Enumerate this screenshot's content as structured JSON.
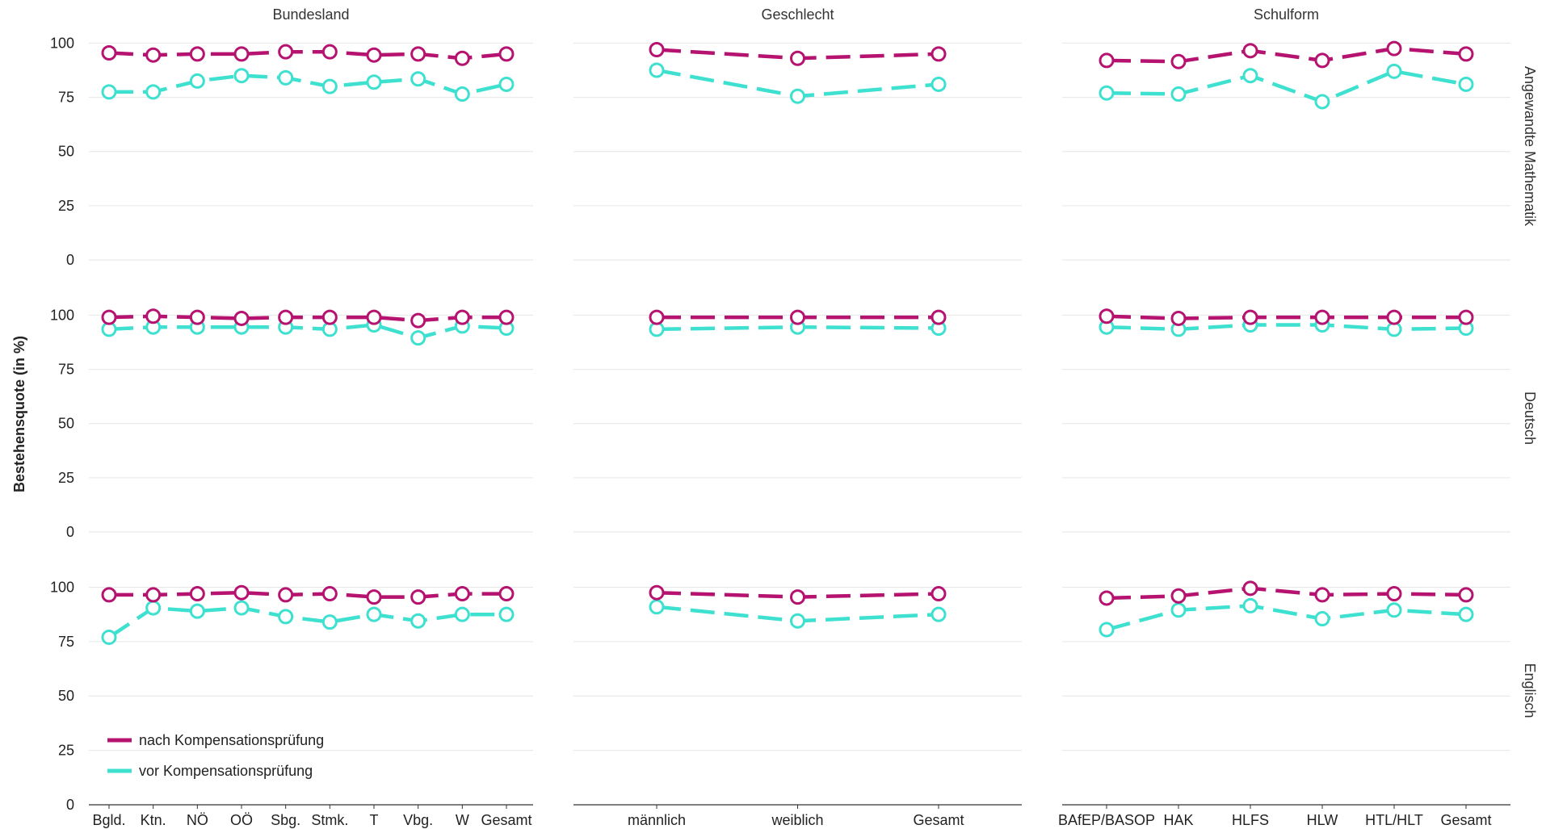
{
  "chart_data": {
    "type": "line",
    "ylabel": "Bestehensquote (in %)",
    "yticks": [
      0,
      25,
      50,
      75,
      100
    ],
    "ylim": [
      0,
      105
    ],
    "grid": true,
    "legend_position": "bottom-left",
    "colors": {
      "nach": "#b5136f",
      "vor": "#3ee0cf"
    },
    "legend": [
      {
        "key": "nach",
        "label": "nach Kompensationsprüfung"
      },
      {
        "key": "vor",
        "label": "vor Kompensationsprüfung"
      }
    ],
    "columns": [
      {
        "title": "Bundesland",
        "categories": [
          "Bgld.",
          "Ktn.",
          "NÖ",
          "OÖ",
          "Sbg.",
          "Stmk.",
          "T",
          "Vbg.",
          "W",
          "Gesamt"
        ]
      },
      {
        "title": "Geschlecht",
        "categories": [
          "männlich",
          "weiblich",
          "Gesamt"
        ]
      },
      {
        "title": "Schulform",
        "categories": [
          "BAfEP/BASOP",
          "HAK",
          "HLFS",
          "HLW",
          "HTL/HLT",
          "Gesamt"
        ]
      }
    ],
    "rows": [
      {
        "label": "Angewandte Mathematik",
        "panels": [
          {
            "nach": [
              95.5,
              94.5,
              95,
              95,
              96,
              96,
              94.5,
              95,
              93,
              95
            ],
            "vor": [
              77.5,
              77.5,
              82.5,
              85,
              84,
              80,
              82,
              83.5,
              76.5,
              81
            ]
          },
          {
            "nach": [
              97,
              93,
              95
            ],
            "vor": [
              87.5,
              75.5,
              81
            ]
          },
          {
            "nach": [
              92,
              91.5,
              96.5,
              92,
              97.5,
              95
            ],
            "vor": [
              77,
              76.5,
              85,
              73,
              87,
              81
            ]
          }
        ]
      },
      {
        "label": "Deutsch",
        "panels": [
          {
            "nach": [
              99,
              99.5,
              99,
              98.5,
              99,
              99,
              99,
              97.5,
              99,
              99
            ],
            "vor": [
              93.5,
              94.5,
              94.5,
              94.5,
              94.5,
              93.5,
              95.5,
              89.5,
              95,
              94
            ]
          },
          {
            "nach": [
              99,
              99,
              99
            ],
            "vor": [
              93.5,
              94.5,
              94
            ]
          },
          {
            "nach": [
              99.5,
              98.5,
              99,
              99,
              99,
              99
            ],
            "vor": [
              94.5,
              93.5,
              95.5,
              95.5,
              93.5,
              94
            ]
          }
        ]
      },
      {
        "label": "Englisch",
        "panels": [
          {
            "nach": [
              96.5,
              96.5,
              97,
              97.5,
              96.5,
              97,
              95.5,
              95.5,
              97,
              97
            ],
            "vor": [
              77,
              90.5,
              89,
              90.5,
              86.5,
              84,
              87.5,
              84.5,
              87.5,
              87.5
            ]
          },
          {
            "nach": [
              97.5,
              95.5,
              97
            ],
            "vor": [
              91,
              84.5,
              87.5
            ]
          },
          {
            "nach": [
              95,
              96,
              99.5,
              96.5,
              97,
              96.5
            ],
            "vor": [
              80.5,
              89.5,
              91.5,
              85.5,
              89.5,
              87.5
            ]
          }
        ]
      }
    ]
  }
}
